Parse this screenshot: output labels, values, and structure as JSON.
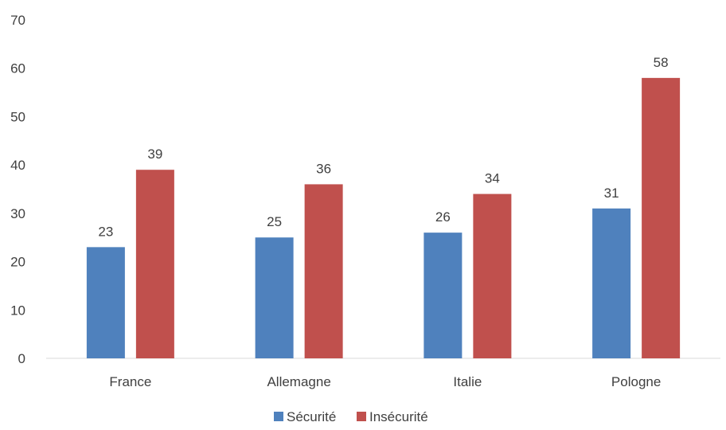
{
  "chart_data": {
    "type": "bar",
    "title": "",
    "xlabel": "",
    "ylabel": "",
    "categories": [
      "France",
      "Allemagne",
      "Italie",
      "Pologne"
    ],
    "series": [
      {
        "name": "Sécurité",
        "values": [
          23,
          25,
          26,
          31
        ],
        "color": "#4f81bd"
      },
      {
        "name": "Insécurité",
        "values": [
          39,
          36,
          34,
          58
        ],
        "color": "#c0504d"
      }
    ],
    "ylim": [
      0,
      70
    ],
    "yticks": [
      0,
      10,
      20,
      30,
      40,
      50,
      60,
      70
    ],
    "grid": false,
    "legend": "bottom-center",
    "data_labels": true
  }
}
